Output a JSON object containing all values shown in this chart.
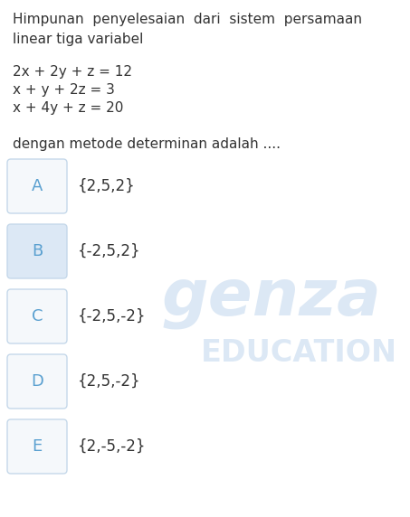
{
  "background_color": "#ffffff",
  "text_color": "#333333",
  "blue_color": "#5aa0d0",
  "watermark_color": "#dce8f5",
  "equations": [
    "2x + 2y + z = 12",
    "x + y + 2z = 3",
    "x + 4y + z = 20"
  ],
  "subtitle": "dengan metode determinan adalah ....",
  "options": [
    {
      "label": "A",
      "text": "{2,5,2}"
    },
    {
      "label": "B",
      "text": "{-2,5,2}"
    },
    {
      "label": "C",
      "text": "{-2,5,-2}"
    },
    {
      "label": "D",
      "text": "{2,5,-2}"
    },
    {
      "label": "E",
      "text": "{2,-5,-2}"
    }
  ],
  "option_box_bg": "#f5f8fb",
  "option_b_bg": "#dce8f5",
  "option_box_border": "#c5d8ea",
  "figsize": [
    4.53,
    5.72
  ],
  "dpi": 100
}
